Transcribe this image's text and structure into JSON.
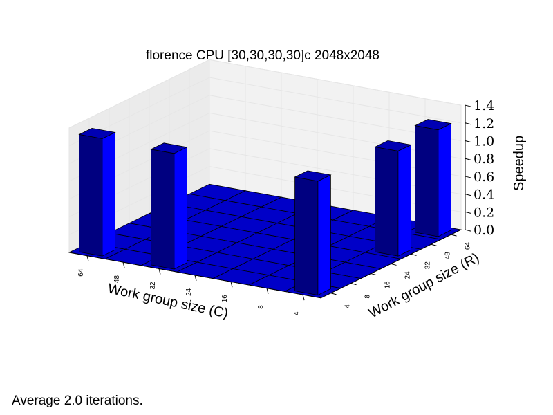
{
  "title": "florence CPU [30,30,30,30]c 2048x2048",
  "footnote": "Average 2.0 iterations.",
  "colors": {
    "bar_front": "#000080",
    "bar_side": "#0000ff",
    "bar_top": "#0000b3",
    "floor_tile": "#0000c8",
    "pane": "#f2f2f2",
    "grid": "#e6e6e6"
  },
  "chart_data": {
    "type": "bar3d",
    "title": "florence CPU [30,30,30,30]c 2048x2048",
    "xlabel": "Work group size (C)",
    "ylabel": "Work group size (R)",
    "zlabel": "Speedup",
    "x_categories": [
      "64",
      "48",
      "32",
      "24",
      "16",
      "8",
      "4"
    ],
    "y_categories": [
      "4",
      "8",
      "16",
      "24",
      "32",
      "48",
      "64"
    ],
    "zlim": [
      0,
      1.4
    ],
    "z_ticks": [
      "0.0",
      "0.2",
      "0.4",
      "0.6",
      "0.8",
      "1.0",
      "1.2",
      "1.4"
    ],
    "grid": true,
    "bars": [
      {
        "c": "64",
        "r": "4",
        "value": 1.32
      },
      {
        "c": "32",
        "r": "4",
        "value": 1.3
      },
      {
        "c": "4",
        "r": "4",
        "value": 1.28
      },
      {
        "c": "4",
        "r": "32",
        "value": 1.18
      },
      {
        "c": "4",
        "r": "64",
        "value": 1.2
      }
    ]
  }
}
